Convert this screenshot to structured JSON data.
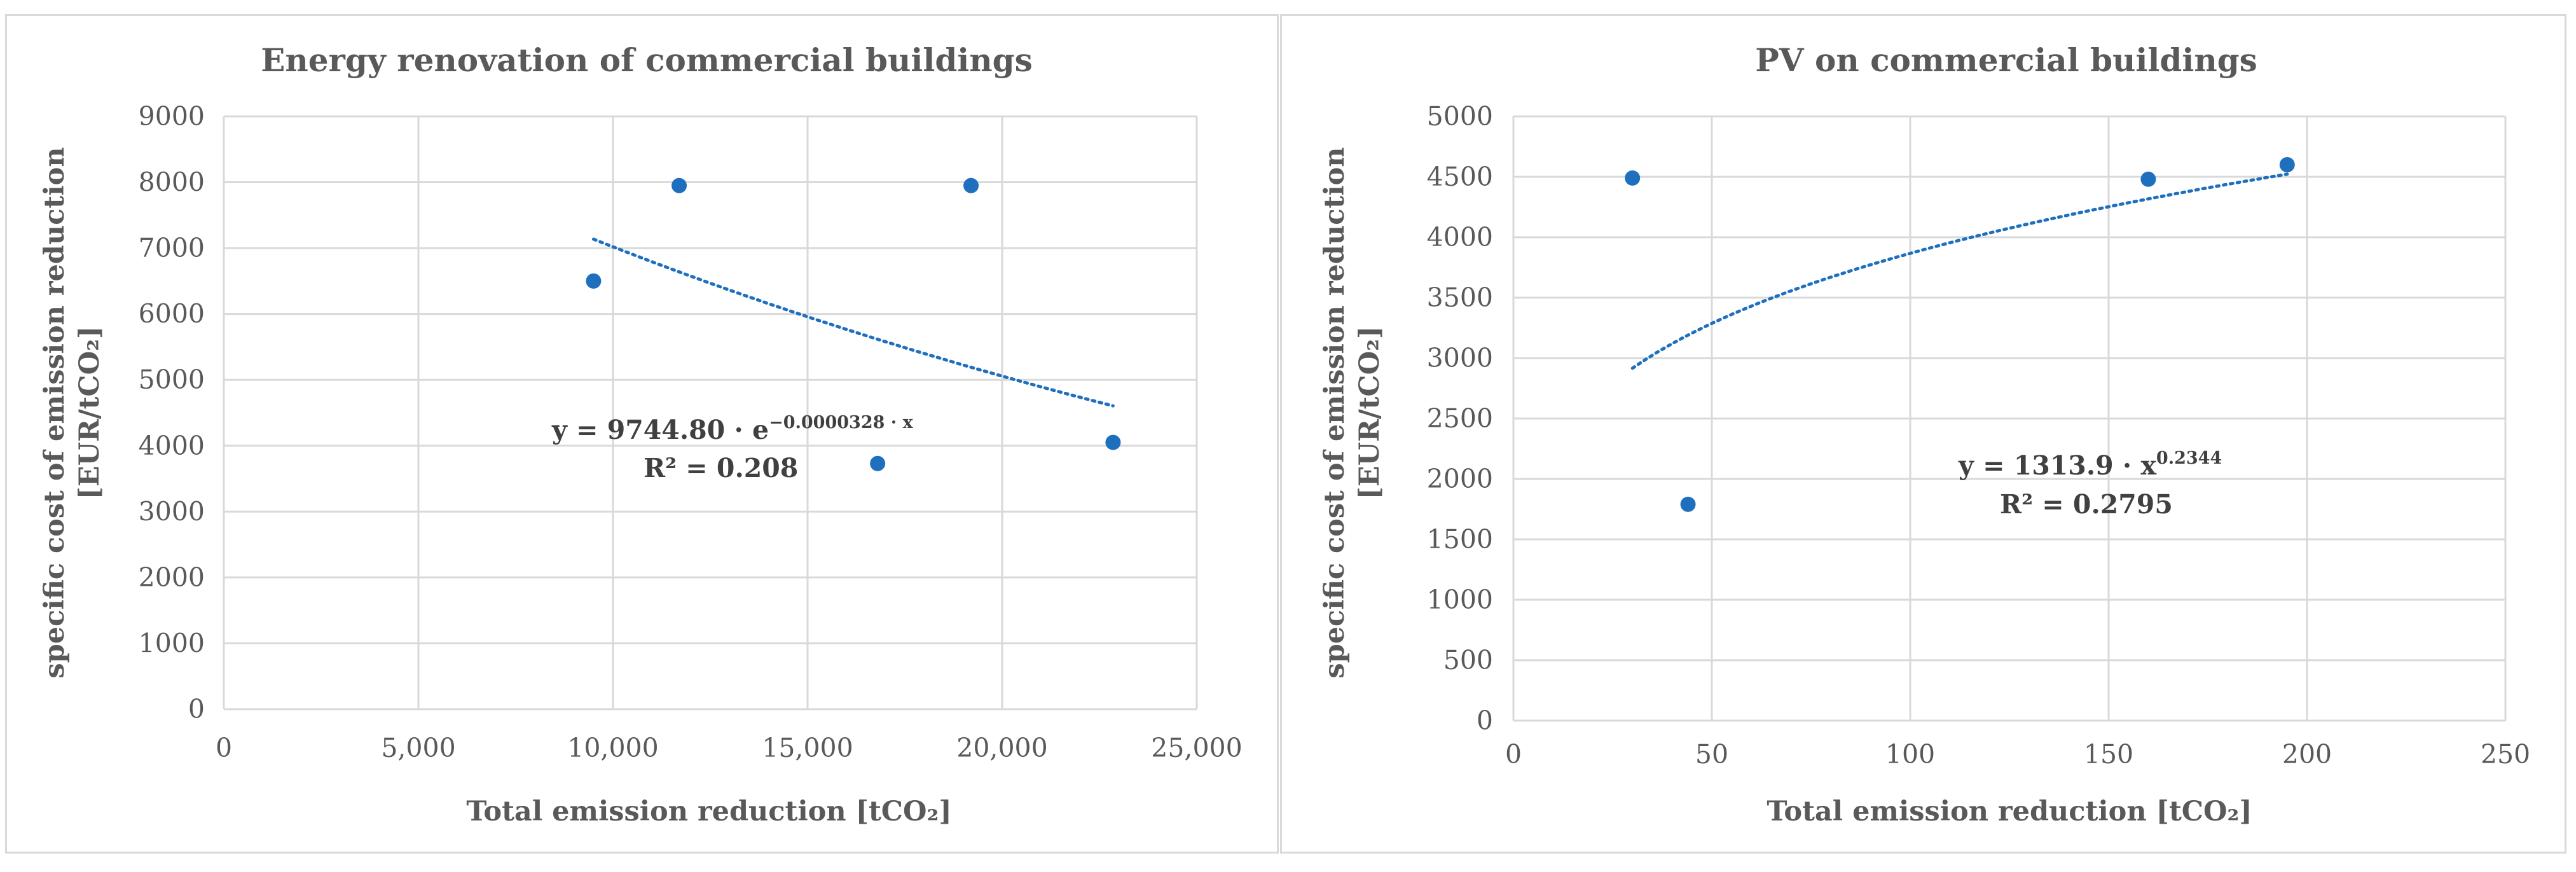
{
  "chart_data": [
    {
      "type": "scatter",
      "title": "Energy renovation of commercial buildings",
      "xlabel": "Total emission reduction [tCO₂]",
      "ylabel_line1": "specific cost of emission reduction",
      "ylabel_line2": "[EUR/tCO₂]",
      "xlim": [
        0,
        25000
      ],
      "ylim": [
        0,
        9000
      ],
      "x_ticks": [
        0,
        5000,
        10000,
        15000,
        20000,
        25000
      ],
      "x_tick_labels": [
        "0",
        "5,000",
        "10,000",
        "15,000",
        "20,000",
        "25,000"
      ],
      "y_ticks": [
        0,
        1000,
        2000,
        3000,
        4000,
        5000,
        6000,
        7000,
        8000,
        9000
      ],
      "y_tick_labels": [
        "0",
        "1000",
        "2000",
        "3000",
        "4000",
        "5000",
        "6000",
        "7000",
        "8000",
        "9000"
      ],
      "grid": true,
      "points": [
        {
          "x": 9500,
          "y": 6500
        },
        {
          "x": 11700,
          "y": 7950
        },
        {
          "x": 16800,
          "y": 3730
        },
        {
          "x": 19200,
          "y": 7950
        },
        {
          "x": 22850,
          "y": 4050
        }
      ],
      "trendline": {
        "type": "exponential",
        "a": 9744.8,
        "b": -3.28e-05,
        "x_range": [
          9500,
          22850
        ]
      },
      "equation_text": "y = 9744.80 · e",
      "equation_exponent": "−0.0000328 · x",
      "r2_text": "R² = 0.208"
    },
    {
      "type": "scatter",
      "title": "PV on commercial buildings",
      "xlabel": "Total emission reduction [tCO₂]",
      "ylabel_line1": "specific cost of emission reduction",
      "ylabel_line2": "[EUR/tCO₂]",
      "xlim": [
        0,
        250
      ],
      "ylim": [
        0,
        5000
      ],
      "x_ticks": [
        0,
        50,
        100,
        150,
        200,
        250
      ],
      "x_tick_labels": [
        "0",
        "50",
        "100",
        "150",
        "200",
        "250"
      ],
      "y_ticks": [
        0,
        500,
        1000,
        1500,
        2000,
        2500,
        3000,
        3500,
        4000,
        4500,
        5000
      ],
      "y_tick_labels": [
        "0",
        "500",
        "1000",
        "1500",
        "2000",
        "2500",
        "3000",
        "3500",
        "4000",
        "4500",
        "5000"
      ],
      "grid": true,
      "points": [
        {
          "x": 30,
          "y": 4490
        },
        {
          "x": 44,
          "y": 1790
        },
        {
          "x": 160,
          "y": 4480
        },
        {
          "x": 195,
          "y": 4600
        }
      ],
      "trendline": {
        "type": "power",
        "a": 1313.9,
        "b": 0.2344,
        "x_range": [
          30,
          195
        ]
      },
      "equation_text": "y = 1313.9 · x",
      "equation_exponent": "0.2344",
      "r2_text": "R² = 0.2795"
    }
  ]
}
